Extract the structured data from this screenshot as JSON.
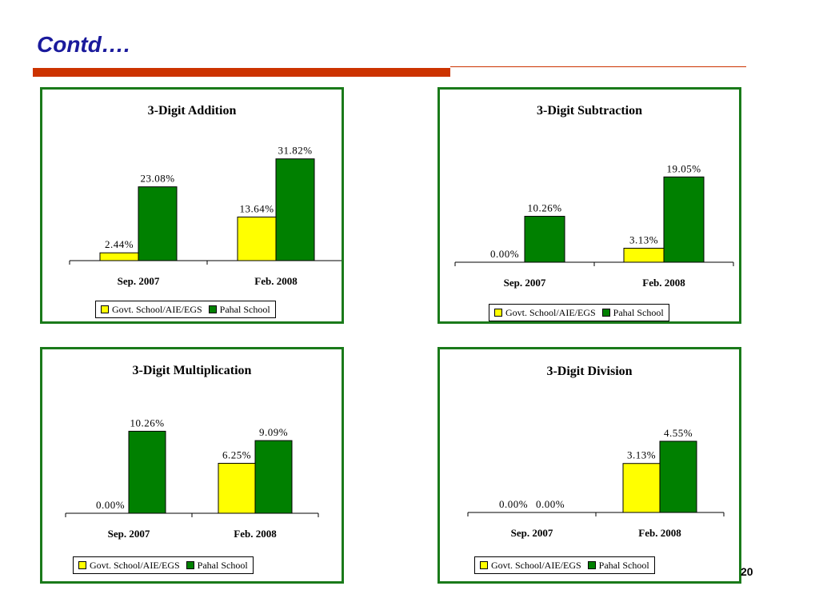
{
  "slide": {
    "title": "Contd….",
    "page_number": "20"
  },
  "legend": {
    "series1": "Govt. School/AIE/EGS",
    "series2": "Pahal School"
  },
  "colors": {
    "series1": "#ffff00",
    "series2": "#008000",
    "panel_border": "#1a7a1a",
    "title": "#1a1a9c",
    "accent_rule": "#cc3300"
  },
  "chart_data": [
    {
      "type": "bar",
      "title": "3-Digit Addition",
      "categories": [
        "Sep. 2007",
        "Feb. 2008"
      ],
      "series": [
        {
          "name": "Govt. School/AIE/EGS",
          "values": [
            2.44,
            13.64
          ],
          "labels": [
            "2.44%",
            "13.64%"
          ]
        },
        {
          "name": "Pahal School",
          "values": [
            23.08,
            31.82
          ],
          "labels": [
            "23.08%",
            "31.82%"
          ]
        }
      ],
      "ylim": [
        0,
        32
      ]
    },
    {
      "type": "bar",
      "title": "3-Digit Subtraction",
      "categories": [
        "Sep. 2007",
        "Feb. 2008"
      ],
      "series": [
        {
          "name": "Govt. School/AIE/EGS",
          "values": [
            0.0,
            3.13
          ],
          "labels": [
            "0.00%",
            "3.13%"
          ]
        },
        {
          "name": "Pahal School",
          "values": [
            10.26,
            19.05
          ],
          "labels": [
            "10.26%",
            "19.05%"
          ]
        }
      ],
      "ylim": [
        0,
        20
      ]
    },
    {
      "type": "bar",
      "title": "3-Digit Multiplication",
      "categories": [
        "Sep. 2007",
        "Feb. 2008"
      ],
      "series": [
        {
          "name": "Govt. School/AIE/EGS",
          "values": [
            0.0,
            6.25
          ],
          "labels": [
            "0.00%",
            "6.25%"
          ]
        },
        {
          "name": "Pahal School",
          "values": [
            10.26,
            9.09
          ],
          "labels": [
            "10.26%",
            "9.09%"
          ]
        }
      ],
      "ylim": [
        0,
        10.5
      ]
    },
    {
      "type": "bar",
      "title": "3-Digit Division",
      "categories": [
        "Sep. 2007",
        "Feb. 2008"
      ],
      "series": [
        {
          "name": "Govt. School/AIE/EGS",
          "values": [
            0.0,
            3.13
          ],
          "labels": [
            "0.00%",
            "3.13%"
          ]
        },
        {
          "name": "Pahal School",
          "values": [
            0.0,
            4.55
          ],
          "labels": [
            "0.00%",
            "4.55%"
          ]
        }
      ],
      "ylim": [
        0,
        4.7
      ]
    }
  ]
}
